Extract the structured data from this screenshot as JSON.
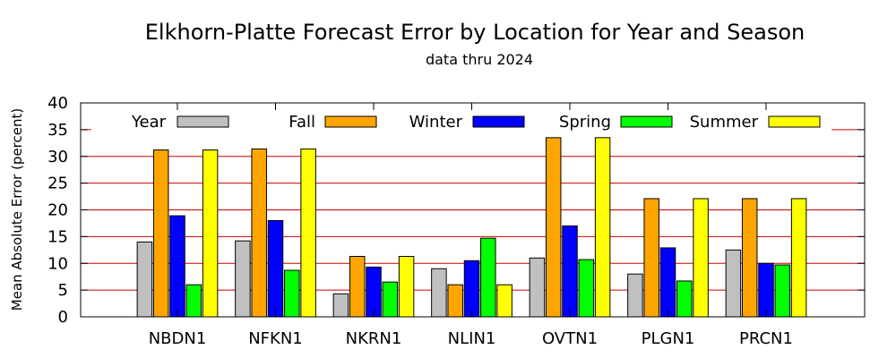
{
  "chart_data": {
    "type": "bar",
    "title": "Elkhorn-Platte Forecast Error by Location for Year and Season",
    "subtitle": "data thru 2024",
    "xlabel": "",
    "ylabel": "Mean Absolute Error (percent)",
    "ylim": [
      0,
      40
    ],
    "yticks": [
      "0",
      "5",
      "10",
      "15",
      "20",
      "25",
      "30",
      "35",
      "40"
    ],
    "grid": true,
    "legend_position": "top",
    "categories": [
      "NBDN1",
      "NFKN1",
      "NKRN1",
      "NLIN1",
      "OVTN1",
      "PLGN1",
      "PRCN1"
    ],
    "series": [
      {
        "name": "Year",
        "color": "#c0c0c0",
        "values": [
          14.0,
          14.2,
          4.3,
          9.0,
          11.0,
          8.0,
          12.5
        ]
      },
      {
        "name": "Fall",
        "color": "#ffa500",
        "values": [
          31.2,
          31.4,
          11.3,
          6.0,
          33.5,
          22.1,
          22.1
        ]
      },
      {
        "name": "Winter",
        "color": "#0000ff",
        "values": [
          18.9,
          18.0,
          9.3,
          10.5,
          17.0,
          12.9,
          10.0
        ]
      },
      {
        "name": "Spring",
        "color": "#00ff00",
        "values": [
          6.0,
          8.7,
          6.5,
          14.7,
          10.7,
          6.7,
          9.7
        ]
      },
      {
        "name": "Summer",
        "color": "#ffff00",
        "values": [
          31.2,
          31.4,
          11.3,
          6.0,
          33.5,
          22.1,
          22.1
        ]
      }
    ],
    "grid_color": "#cc0000"
  }
}
